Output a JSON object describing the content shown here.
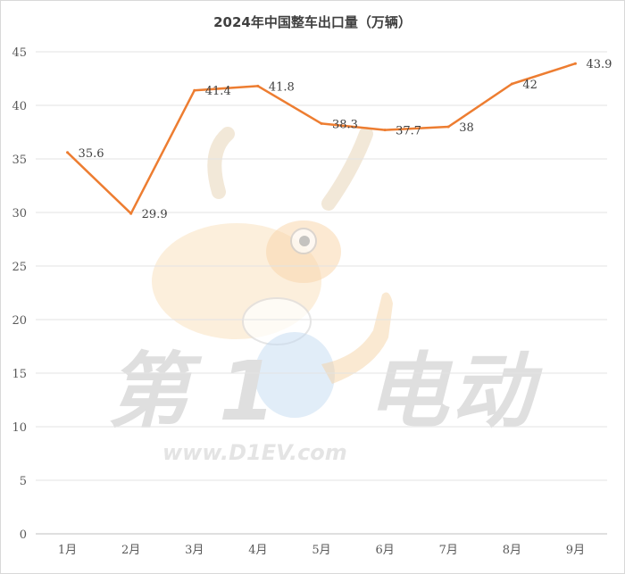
{
  "chart_data": {
    "type": "line",
    "title": "2024年中国整车出口量（万辆）",
    "categories": [
      "1月",
      "2月",
      "3月",
      "4月",
      "5月",
      "6月",
      "7月",
      "8月",
      "9月"
    ],
    "series": [
      {
        "values": [
          35.6,
          29.9,
          41.4,
          41.8,
          38.3,
          37.7,
          38,
          42,
          43.9
        ]
      }
    ],
    "data_labels": [
      "35.6",
      "29.9",
      "41.4",
      "41.8",
      "38.3",
      "37.7",
      "38",
      "42",
      "43.9"
    ],
    "ylim": [
      0,
      45
    ],
    "yticks": [
      0,
      5,
      10,
      15,
      20,
      25,
      30,
      35,
      40,
      45
    ],
    "grid": true,
    "line_color": "#ED7D31"
  },
  "watermark": {
    "brand_chars": [
      "第",
      "1",
      "电",
      "动"
    ],
    "url": "www.D1EV.com"
  }
}
